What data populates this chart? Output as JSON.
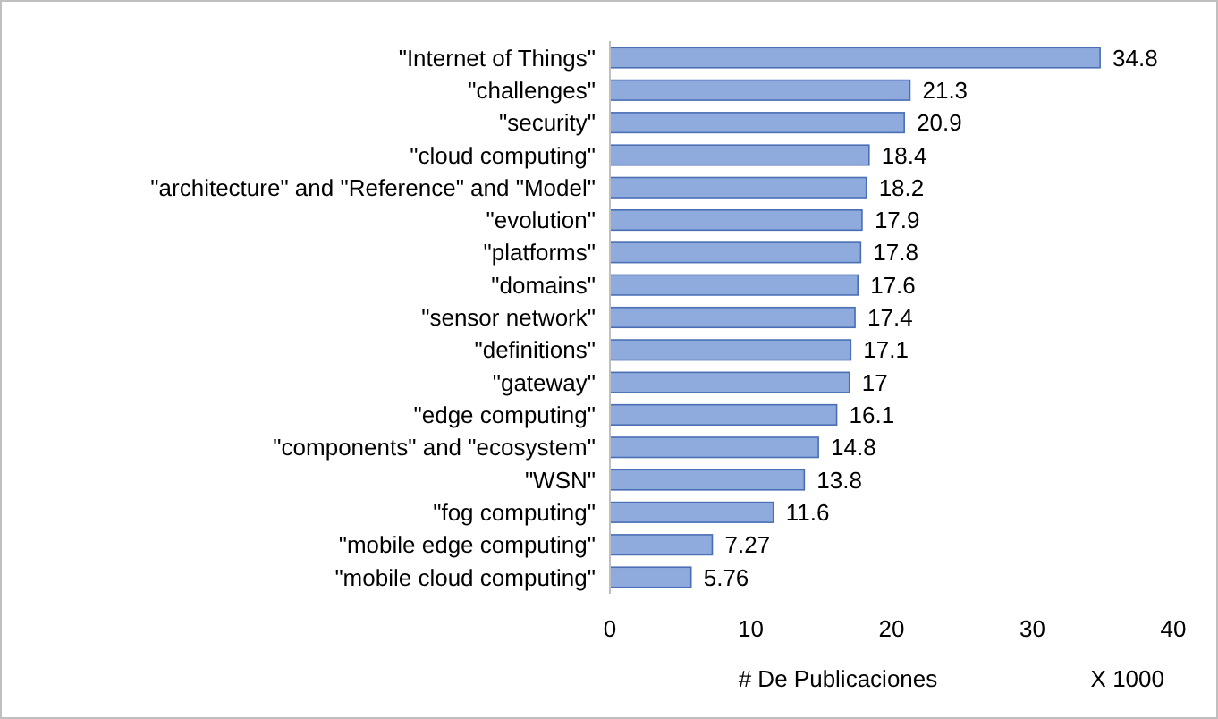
{
  "chart_data": {
    "type": "bar",
    "orientation": "horizontal",
    "xlabel": "# De Publicaciones",
    "annotations": [
      "X 1000"
    ],
    "categories": [
      "\"Internet of Things\"",
      "\"challenges\"",
      "\"security\"",
      "\"cloud computing\"",
      "\"architecture\" and \"Reference\" and \"Model\"",
      "\"evolution\"",
      "\"platforms\"",
      "\"domains\"",
      "\"sensor network\"",
      "\"definitions\"",
      "\"gateway\"",
      "\"edge computing\"",
      "\"components\" and \"ecosystem\"",
      "\"WSN\"",
      "\"fog computing\"",
      "\"mobile edge computing\"",
      "\"mobile cloud computing\""
    ],
    "values": [
      34.8,
      21.3,
      20.9,
      18.4,
      18.2,
      17.9,
      17.8,
      17.6,
      17.4,
      17.1,
      17,
      16.1,
      14.8,
      13.8,
      11.6,
      7.27,
      5.76
    ],
    "color": "#8faadc",
    "data_labels": true,
    "xlim": [
      0,
      40
    ],
    "xticks": [
      0,
      10,
      20,
      30,
      40
    ],
    "grid": false
  }
}
